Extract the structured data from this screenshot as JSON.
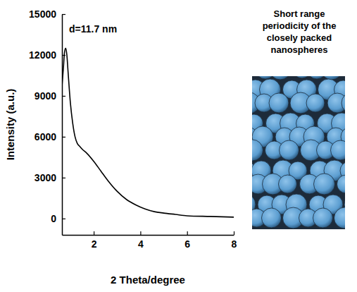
{
  "chart_data": {
    "type": "line",
    "x_label": "2 Theta/degree",
    "y_label": "Intensity (a.u.)",
    "annotation": "d=11.7 nm",
    "side_label": "Short range periodicity of the closely packed nanospheres",
    "color": "#000000",
    "x": [
      0.64,
      0.7,
      0.75,
      0.8,
      0.85,
      0.9,
      1.0,
      1.1,
      1.2,
      1.3,
      1.4,
      1.5,
      1.7,
      2.0,
      2.3,
      2.6,
      3.0,
      3.4,
      3.8,
      4.2,
      4.6,
      5.0,
      5.5,
      6.0,
      7.0,
      8.0
    ],
    "values": [
      9700,
      11000,
      12200,
      12500,
      12000,
      10800,
      8500,
      7000,
      6000,
      5500,
      5300,
      5100,
      4800,
      4200,
      3500,
      2800,
      2000,
      1400,
      1000,
      700,
      500,
      400,
      300,
      200,
      150,
      100
    ],
    "xlim": [
      0.64,
      8
    ],
    "ylim": [
      -1200,
      15000
    ],
    "xticks": [
      2,
      4,
      6,
      8
    ],
    "yticks": [
      0,
      3000,
      6000,
      9000,
      12000,
      15000
    ],
    "grid": false
  }
}
